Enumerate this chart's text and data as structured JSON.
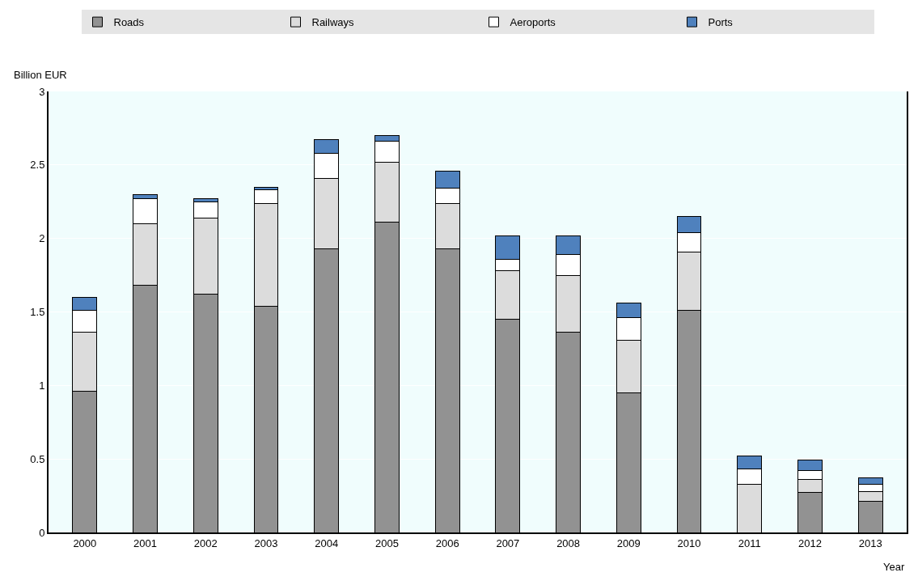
{
  "chart_data": {
    "type": "bar",
    "stacked": true,
    "ylabel": "Billion EUR",
    "xlabel": "Year",
    "categories": [
      "2000",
      "2001",
      "2002",
      "2003",
      "2004",
      "2005",
      "2006",
      "2007",
      "2008",
      "2009",
      "2010",
      "2011",
      "2012",
      "2013"
    ],
    "series": [
      {
        "name": "Roads",
        "color": "#929292",
        "values": [
          0.96,
          1.68,
          1.62,
          1.54,
          1.93,
          2.11,
          1.93,
          1.45,
          1.36,
          0.95,
          1.51,
          0,
          0.27,
          0.21
        ]
      },
      {
        "name": "Railways",
        "color": "#dcdcdc",
        "values": [
          0.4,
          0.42,
          0.52,
          0.7,
          0.48,
          0.41,
          0.31,
          0.33,
          0.39,
          0.36,
          0.4,
          0.33,
          0.09,
          0.07
        ]
      },
      {
        "name": "Aeroports",
        "color": "#ffffff",
        "values": [
          0.15,
          0.17,
          0.11,
          0.09,
          0.17,
          0.14,
          0.1,
          0.08,
          0.14,
          0.15,
          0.13,
          0.1,
          0.06,
          0.05
        ]
      },
      {
        "name": "Ports",
        "color": "#4f81bd",
        "values": [
          0.09,
          0.03,
          0.02,
          0.02,
          0.09,
          0.04,
          0.12,
          0.16,
          0.13,
          0.1,
          0.11,
          0.09,
          0.07,
          0.04
        ]
      }
    ],
    "ylim": [
      0,
      3
    ],
    "yticks": [
      0,
      0.5,
      1,
      1.5,
      2,
      2.5,
      3
    ],
    "grid": "y",
    "legend": "top"
  }
}
